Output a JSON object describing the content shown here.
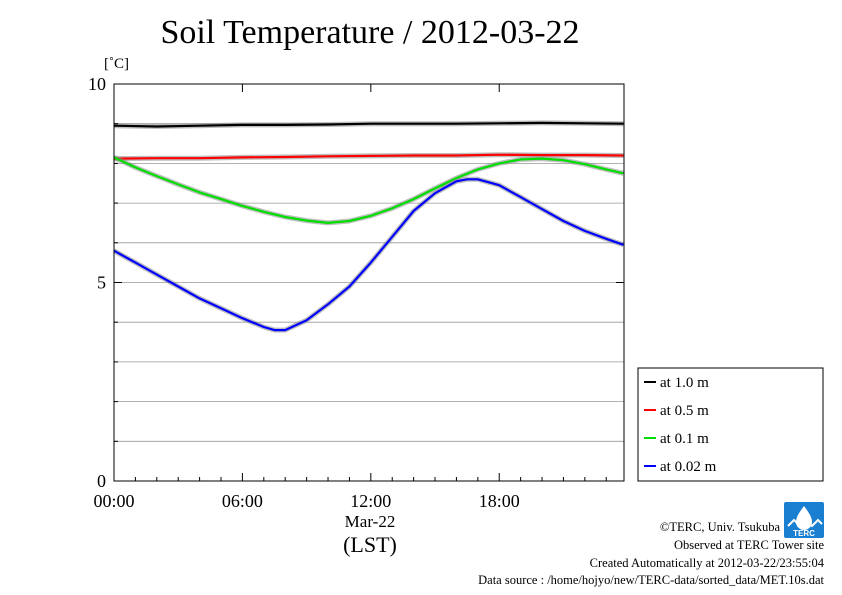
{
  "title": "Soil Temperature / 2012-03-22",
  "unit_label": "[˚C]",
  "x_date_label": "Mar-22",
  "x_axis_label": "(LST)",
  "credits": {
    "copyright": "©TERC, Univ. Tsukuba",
    "site": "Observed at TERC Tower site",
    "created": "Created Automatically at 2012-03-22/23:55:04",
    "source": "Data source : /home/hojyo/new/TERC-data/sorted_data/MET.10s.dat"
  },
  "logo_text": "TERC",
  "chart_data": {
    "type": "line",
    "title": "Soil Temperature / 2012-03-22",
    "ylabel": "[˚C]",
    "xlabel": "(LST)",
    "xlim": [
      0,
      23.83
    ],
    "ylim": [
      0,
      10
    ],
    "x_ticks": [
      0,
      6,
      12,
      18
    ],
    "x_tick_labels": [
      "00:00",
      "06:00",
      "12:00",
      "18:00"
    ],
    "y_ticks": [
      0,
      5,
      10
    ],
    "y_tick_labels": [
      "0",
      "5",
      "10"
    ],
    "grid": "horizontal",
    "legend_position": "right-bottom",
    "series": [
      {
        "name": "at 1.0 m",
        "color": "#000000",
        "x": [
          0,
          2,
          4,
          6,
          8,
          10,
          12,
          14,
          16,
          18,
          20,
          22,
          23.8
        ],
        "y": [
          8.95,
          8.93,
          8.95,
          8.97,
          8.97,
          8.98,
          9.0,
          9.0,
          9.0,
          9.01,
          9.02,
          9.01,
          9.0
        ]
      },
      {
        "name": "at 0.5 m",
        "color": "#ff0000",
        "x": [
          0,
          2,
          4,
          6,
          8,
          10,
          12,
          14,
          16,
          18,
          20,
          22,
          23.8
        ],
        "y": [
          8.12,
          8.13,
          8.13,
          8.15,
          8.16,
          8.18,
          8.19,
          8.2,
          8.2,
          8.22,
          8.21,
          8.21,
          8.2
        ]
      },
      {
        "name": "at 0.1 m",
        "color": "#00dd00",
        "x": [
          0,
          1,
          2,
          3,
          4,
          5,
          6,
          7,
          8,
          9,
          10,
          11,
          12,
          13,
          14,
          15,
          16,
          17,
          18,
          19,
          20,
          21,
          22,
          23,
          23.8
        ],
        "y": [
          8.15,
          7.9,
          7.68,
          7.47,
          7.27,
          7.1,
          6.93,
          6.78,
          6.65,
          6.56,
          6.5,
          6.55,
          6.68,
          6.87,
          7.1,
          7.37,
          7.63,
          7.85,
          8.0,
          8.1,
          8.12,
          8.08,
          7.98,
          7.85,
          7.75
        ]
      },
      {
        "name": "at 0.02 m",
        "color": "#0000ff",
        "x": [
          0,
          1,
          2,
          3,
          4,
          5,
          6,
          7,
          7.5,
          8,
          9,
          10,
          11,
          12,
          13,
          14,
          15,
          16,
          16.5,
          17,
          18,
          19,
          20,
          21,
          22,
          23,
          23.8
        ],
        "y": [
          5.8,
          5.5,
          5.2,
          4.9,
          4.6,
          4.35,
          4.1,
          3.88,
          3.8,
          3.8,
          4.05,
          4.45,
          4.9,
          5.5,
          6.15,
          6.8,
          7.25,
          7.55,
          7.6,
          7.6,
          7.45,
          7.15,
          6.85,
          6.55,
          6.3,
          6.1,
          5.95
        ]
      }
    ]
  }
}
